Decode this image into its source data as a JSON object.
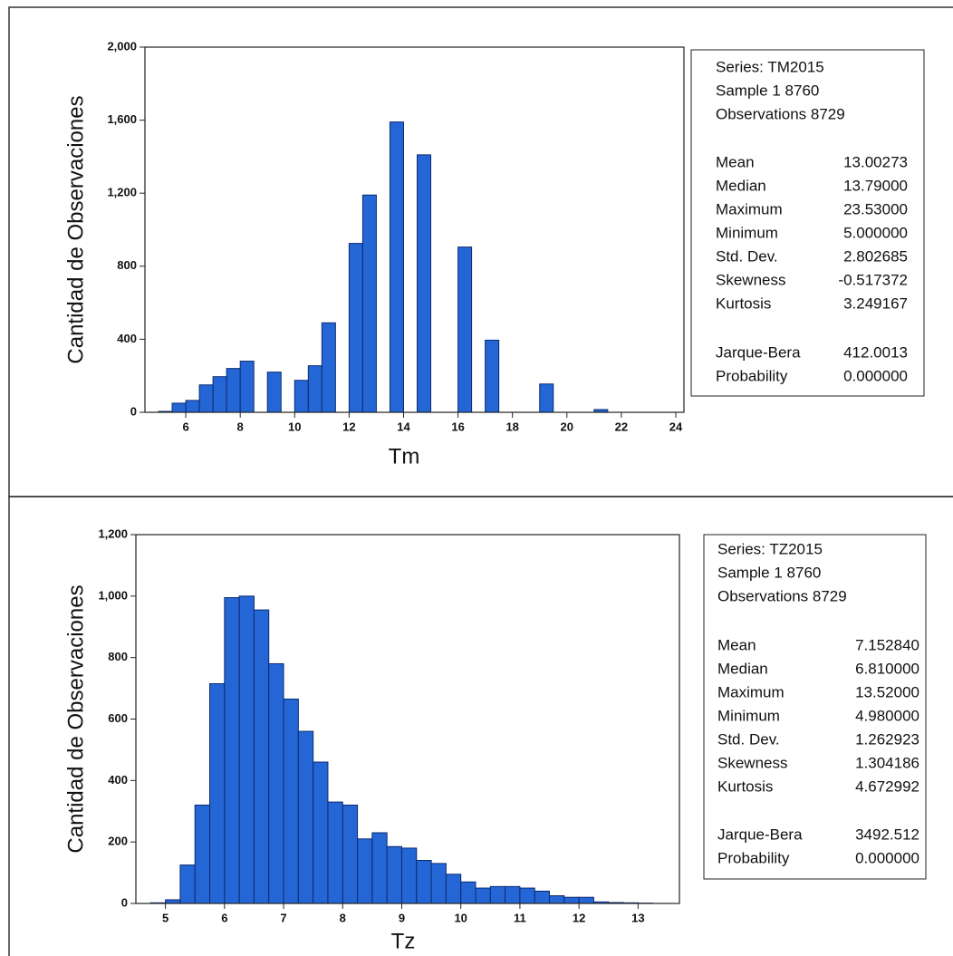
{
  "chart_data": [
    {
      "type": "histogram",
      "xlabel": "Tm",
      "ylabel": "Cantidad de Observaciones",
      "bins": [
        5.0,
        5.5,
        6.0,
        6.5,
        7.0,
        7.5,
        8.0,
        8.5,
        9.0,
        9.5,
        10.0,
        10.5,
        11.0,
        11.5,
        12.0,
        12.5,
        13.0,
        13.5,
        14.0,
        14.5,
        15.0,
        15.5,
        16.0,
        16.5,
        17.0,
        17.5,
        18.0,
        18.5,
        19.0,
        19.5,
        20.0,
        20.5,
        21.0,
        21.5,
        22.0,
        22.5,
        23.0,
        23.5
      ],
      "values": [
        5,
        50,
        65,
        150,
        195,
        240,
        280,
        0,
        220,
        0,
        175,
        255,
        490,
        0,
        925,
        1190,
        0,
        1590,
        0,
        1410,
        0,
        0,
        905,
        0,
        395,
        0,
        0,
        0,
        155,
        0,
        0,
        0,
        15,
        0,
        0,
        0,
        0
      ],
      "color": "#2466d6",
      "xlim": [
        4.5,
        24.3
      ],
      "xticks": [
        6,
        8,
        10,
        12,
        14,
        16,
        18,
        20,
        22,
        24
      ],
      "ylim": [
        0,
        2000
      ],
      "yticks": [
        0,
        400,
        800,
        {
          "value": 1200,
          "label": "1,200"
        },
        {
          "value": 1600,
          "label": "1,600"
        },
        {
          "value": 2000,
          "label": "2,000"
        }
      ],
      "stats": {
        "header": [
          "Series: TM2015",
          "Sample 1 8760",
          "Observations 8729"
        ],
        "rows": [
          {
            "label": "Mean",
            "value": "13.00273"
          },
          {
            "label": "Median",
            "value": "13.79000"
          },
          {
            "label": "Maximum",
            "value": "23.53000"
          },
          {
            "label": "Minimum",
            "value": "5.000000"
          },
          {
            "label": "Std. Dev.",
            "value": "2.802685"
          },
          {
            "label": "Skewness",
            "value": "-0.517372"
          },
          {
            "label": "Kurtosis",
            "value": "3.249167"
          }
        ],
        "tests": [
          {
            "label": "Jarque-Bera",
            "value": "412.0013"
          },
          {
            "label": "Probability",
            "value": "0.000000"
          }
        ]
      }
    },
    {
      "type": "histogram",
      "xlabel": "Tz",
      "ylabel": "Cantidad de Observaciones",
      "bins": [
        4.75,
        5.0,
        5.25,
        5.5,
        5.75,
        6.0,
        6.25,
        6.5,
        6.75,
        7.0,
        7.25,
        7.5,
        7.75,
        8.0,
        8.25,
        8.5,
        8.75,
        9.0,
        9.25,
        9.5,
        9.75,
        10.0,
        10.25,
        10.5,
        10.75,
        11.0,
        11.25,
        11.5,
        11.75,
        12.0,
        12.25,
        12.5,
        12.75,
        13.0,
        13.25
      ],
      "values": [
        2,
        12,
        125,
        320,
        715,
        995,
        1000,
        955,
        780,
        665,
        560,
        460,
        330,
        320,
        210,
        230,
        185,
        180,
        140,
        130,
        95,
        70,
        50,
        55,
        55,
        50,
        40,
        25,
        20,
        20,
        5,
        3,
        2,
        1
      ],
      "color": "#2466d6",
      "xlim": [
        4.5,
        13.7
      ],
      "xticks": [
        5,
        6,
        7,
        8,
        9,
        10,
        11,
        12,
        13
      ],
      "ylim": [
        0,
        1200
      ],
      "yticks": [
        0,
        200,
        400,
        600,
        800,
        {
          "value": 1000,
          "label": "1,000"
        },
        {
          "value": 1200,
          "label": "1,200"
        }
      ],
      "stats": {
        "header": [
          "Series: TZ2015",
          "Sample 1 8760",
          "Observations 8729"
        ],
        "rows": [
          {
            "label": "Mean",
            "value": "7.152840"
          },
          {
            "label": "Median",
            "value": "6.810000"
          },
          {
            "label": "Maximum",
            "value": "13.52000"
          },
          {
            "label": "Minimum",
            "value": "4.980000"
          },
          {
            "label": "Std. Dev.",
            "value": "1.262923"
          },
          {
            "label": "Skewness",
            "value": "1.304186"
          },
          {
            "label": "Kurtosis",
            "value": "4.672992"
          }
        ],
        "tests": [
          {
            "label": "Jarque-Bera",
            "value": "3492.512"
          },
          {
            "label": "Probability",
            "value": "0.000000"
          }
        ]
      }
    }
  ]
}
